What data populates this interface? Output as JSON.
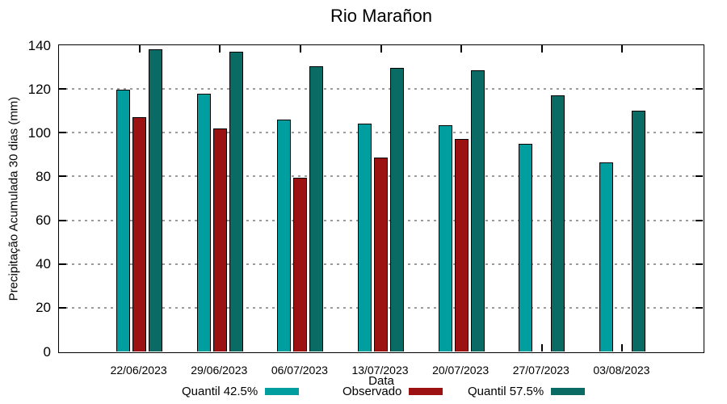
{
  "title": "Rio Marañon",
  "chart_data": {
    "type": "bar",
    "title": "Rio Marañon",
    "xlabel": "Data",
    "ylabel": "Precipitação Acumulada 30 dias (mm)",
    "categories": [
      "22/06/2023",
      "29/06/2023",
      "06/07/2023",
      "13/07/2023",
      "20/07/2023",
      "27/07/2023",
      "03/08/2023"
    ],
    "series": [
      {
        "name": "Quantil 42.5%",
        "color": "#009E9E",
        "values": [
          119.8,
          118,
          106,
          104,
          103.5,
          95,
          86.5
        ]
      },
      {
        "name": "Observado",
        "color": "#9C1111",
        "values": [
          107,
          102,
          79.5,
          88.5,
          97,
          null,
          null
        ]
      },
      {
        "name": "Quantil 57.5%",
        "color": "#0A6A64",
        "values": [
          138,
          137,
          130.5,
          129.5,
          128.5,
          117,
          110
        ]
      }
    ],
    "ylim": [
      0,
      140
    ],
    "yticks": [
      0,
      20,
      40,
      60,
      80,
      100,
      120,
      140
    ],
    "grid": true,
    "gridline_color": "#9c9c9c",
    "axis_color": "#000000",
    "background_color": "#ffffff",
    "legend_position": "bottom"
  }
}
